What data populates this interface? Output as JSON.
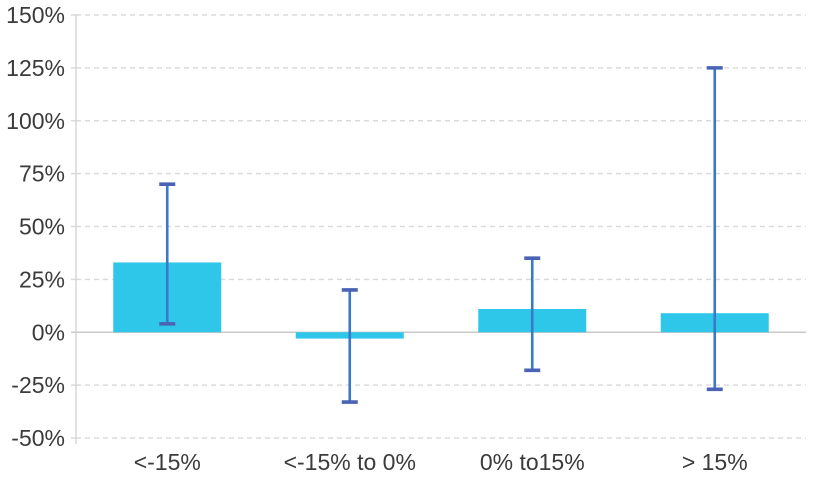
{
  "chart_data": {
    "type": "bar",
    "title": "",
    "xlabel": "",
    "ylabel": "",
    "categories": [
      "<-15%",
      "<-15% to 0%",
      "0% to15%",
      "> 15%"
    ],
    "values": [
      33,
      -3,
      11,
      9
    ],
    "error_low": [
      4,
      -33,
      -18,
      -27
    ],
    "error_high": [
      70,
      20,
      35,
      125
    ],
    "ylim": [
      -50,
      150
    ],
    "yticks": [
      150,
      125,
      100,
      75,
      50,
      25,
      0,
      -25,
      -50
    ],
    "ytick_labels": [
      "150%",
      "125%",
      "100%",
      "75%",
      "50%",
      "25%",
      "0%",
      "-25%",
      "-50%"
    ],
    "grid": "horizontal-dashed",
    "legend": "none",
    "colors": {
      "bar_fill": "#2EC7EA",
      "error_line": "#3A78C8",
      "error_cap": "#4A63B4",
      "gridline": "#DBDBDB",
      "zero_line": "#C9C9C9",
      "axis_line": "#D4D4D4",
      "label_text": "#3B3B3B"
    }
  }
}
